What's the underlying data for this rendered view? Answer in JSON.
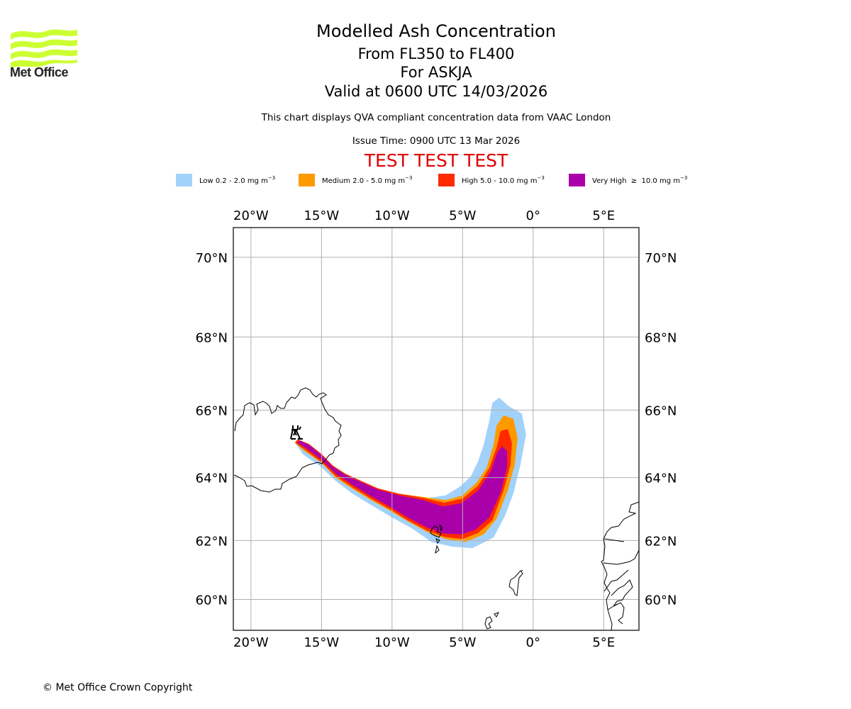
{
  "logo": {
    "text": "Met Office",
    "icon": "met-office-wave-logo",
    "color": "#ccff33"
  },
  "header": {
    "title": "Modelled Ash Concentration",
    "flight_levels": "From FL350 to FL400",
    "volcano": "For ASKJA",
    "valid_time": "Valid at 0600 UTC 14/03/2026",
    "note": "This chart displays QVA compliant concentration data from VAAC London",
    "issue_time": "Issue Time: 0900 UTC 13 Mar 2026",
    "test_banner": "TEST TEST TEST",
    "test_banner_color": "#e00000"
  },
  "legend": [
    {
      "label": "Low 0.2 - 2.0 mg m",
      "unit_exp": "−3",
      "color": "#a2d2fa",
      "min": 0.2,
      "max": 2.0
    },
    {
      "label": "Medium 2.0 - 5.0 mg m",
      "unit_exp": "−3",
      "color": "#ff9900",
      "min": 2.0,
      "max": 5.0
    },
    {
      "label": "High 5.0 - 10.0 mg m",
      "unit_exp": "−3",
      "color": "#ff2a00",
      "min": 5.0,
      "max": 10.0
    },
    {
      "label": "Very High  ≥  10.0 mg m",
      "unit_exp": "−3",
      "color": "#aa00aa",
      "min": 10.0,
      "max": null
    }
  ],
  "map": {
    "lon_ticks": [
      "20°W",
      "15°W",
      "10°W",
      "5°W",
      "0°",
      "5°E"
    ],
    "lat_ticks": [
      "70°N",
      "68°N",
      "66°N",
      "64°N",
      "62°N",
      "60°N"
    ],
    "lon_values": [
      -20,
      -15,
      -10,
      -5,
      0,
      5
    ],
    "lat_values": [
      70,
      68,
      66,
      64,
      62,
      60
    ],
    "extent": {
      "lon_min": -21.25,
      "lon_max": 7.5,
      "lat_min": 58.9,
      "lat_max": 70.7
    },
    "volcano": {
      "name": "ASKJA",
      "icon": "volcano-icon",
      "lon": -16.7,
      "lat": 65.05
    },
    "grid_color": "#b0b0b0",
    "ash_plume": {
      "description": "Ash plume extends ESE from Askja over the Faroe Islands then curves NE toward 65.5°N 2°W",
      "low_outline": [
        [
          -16.6,
          65.15
        ],
        [
          -15.9,
          65.0
        ],
        [
          -15.0,
          64.65
        ],
        [
          -14.2,
          64.3
        ],
        [
          -13.3,
          64.05
        ],
        [
          -12.3,
          63.85
        ],
        [
          -11.0,
          63.6
        ],
        [
          -9.5,
          63.45
        ],
        [
          -7.8,
          63.35
        ],
        [
          -6.2,
          63.45
        ],
        [
          -5.1,
          63.75
        ],
        [
          -4.4,
          64.05
        ],
        [
          -3.9,
          64.5
        ],
        [
          -3.5,
          65.0
        ],
        [
          -3.1,
          65.7
        ],
        [
          -2.9,
          66.2
        ],
        [
          -2.4,
          66.35
        ],
        [
          -1.7,
          66.1
        ],
        [
          -0.8,
          65.9
        ],
        [
          -0.5,
          65.3
        ],
        [
          -0.9,
          64.4
        ],
        [
          -1.4,
          63.5
        ],
        [
          -2.0,
          62.8
        ],
        [
          -2.8,
          62.1
        ],
        [
          -4.3,
          61.75
        ],
        [
          -5.8,
          61.8
        ],
        [
          -7.2,
          61.95
        ],
        [
          -8.6,
          62.4
        ],
        [
          -10.0,
          62.75
        ],
        [
          -11.5,
          63.15
        ],
        [
          -12.8,
          63.5
        ],
        [
          -14.0,
          63.9
        ],
        [
          -15.1,
          64.35
        ],
        [
          -16.3,
          64.7
        ],
        [
          -16.8,
          65.0
        ]
      ],
      "medium_outline": [
        [
          -16.7,
          65.15
        ],
        [
          -15.9,
          65.0
        ],
        [
          -15.0,
          64.7
        ],
        [
          -14.2,
          64.35
        ],
        [
          -13.3,
          64.1
        ],
        [
          -12.3,
          63.9
        ],
        [
          -11.0,
          63.65
        ],
        [
          -9.5,
          63.5
        ],
        [
          -7.8,
          63.4
        ],
        [
          -6.2,
          63.3
        ],
        [
          -5.0,
          63.45
        ],
        [
          -4.0,
          63.85
        ],
        [
          -3.3,
          64.3
        ],
        [
          -2.8,
          65.0
        ],
        [
          -2.6,
          65.55
        ],
        [
          -2.1,
          65.85
        ],
        [
          -1.4,
          65.75
        ],
        [
          -1.1,
          65.2
        ],
        [
          -1.3,
          64.4
        ],
        [
          -1.8,
          63.6
        ],
        [
          -2.6,
          62.7
        ],
        [
          -3.5,
          62.2
        ],
        [
          -4.8,
          61.95
        ],
        [
          -6.2,
          62.05
        ],
        [
          -7.4,
          62.25
        ],
        [
          -8.8,
          62.6
        ],
        [
          -10.1,
          62.95
        ],
        [
          -11.5,
          63.3
        ],
        [
          -12.8,
          63.65
        ],
        [
          -14.0,
          64.0
        ],
        [
          -15.0,
          64.45
        ],
        [
          -16.2,
          64.8
        ],
        [
          -16.9,
          65.05
        ]
      ],
      "high_outline": [
        [
          -16.7,
          65.15
        ],
        [
          -15.9,
          65.02
        ],
        [
          -15.0,
          64.72
        ],
        [
          -14.2,
          64.37
        ],
        [
          -13.3,
          64.12
        ],
        [
          -12.3,
          63.92
        ],
        [
          -11.0,
          63.67
        ],
        [
          -9.5,
          63.5
        ],
        [
          -7.8,
          63.37
        ],
        [
          -6.3,
          63.22
        ],
        [
          -5.0,
          63.35
        ],
        [
          -3.9,
          63.75
        ],
        [
          -3.1,
          64.3
        ],
        [
          -2.6,
          64.9
        ],
        [
          -2.3,
          65.4
        ],
        [
          -1.8,
          65.45
        ],
        [
          -1.5,
          65.05
        ],
        [
          -1.6,
          64.4
        ],
        [
          -2.1,
          63.6
        ],
        [
          -2.9,
          62.65
        ],
        [
          -3.9,
          62.25
        ],
        [
          -5.0,
          62.05
        ],
        [
          -6.3,
          62.12
        ],
        [
          -7.5,
          62.32
        ],
        [
          -8.9,
          62.66
        ],
        [
          -10.1,
          63.0
        ],
        [
          -11.5,
          63.35
        ],
        [
          -12.8,
          63.7
        ],
        [
          -14.0,
          64.05
        ],
        [
          -15.0,
          64.48
        ],
        [
          -16.1,
          64.82
        ],
        [
          -16.85,
          65.05
        ]
      ],
      "very_high_outline": [
        [
          -16.55,
          65.12
        ],
        [
          -15.85,
          64.98
        ],
        [
          -15.0,
          64.68
        ],
        [
          -14.2,
          64.33
        ],
        [
          -13.3,
          64.08
        ],
        [
          -12.3,
          63.88
        ],
        [
          -11.0,
          63.63
        ],
        [
          -9.5,
          63.45
        ],
        [
          -7.8,
          63.3
        ],
        [
          -6.4,
          63.1
        ],
        [
          -5.1,
          63.2
        ],
        [
          -3.9,
          63.6
        ],
        [
          -3.0,
          64.2
        ],
        [
          -2.55,
          64.75
        ],
        [
          -2.2,
          64.95
        ],
        [
          -1.85,
          64.8
        ],
        [
          -1.85,
          64.3
        ],
        [
          -2.3,
          63.55
        ],
        [
          -3.1,
          62.75
        ],
        [
          -4.1,
          62.35
        ],
        [
          -5.1,
          62.2
        ],
        [
          -6.3,
          62.23
        ],
        [
          -7.5,
          62.42
        ],
        [
          -8.9,
          62.75
        ],
        [
          -10.1,
          63.08
        ],
        [
          -11.5,
          63.43
        ],
        [
          -12.8,
          63.78
        ],
        [
          -14.0,
          64.13
        ],
        [
          -15.0,
          64.55
        ],
        [
          -16.05,
          64.88
        ],
        [
          -16.7,
          65.05
        ]
      ]
    }
  },
  "footer": {
    "copyright": "© Met Office Crown Copyright"
  }
}
